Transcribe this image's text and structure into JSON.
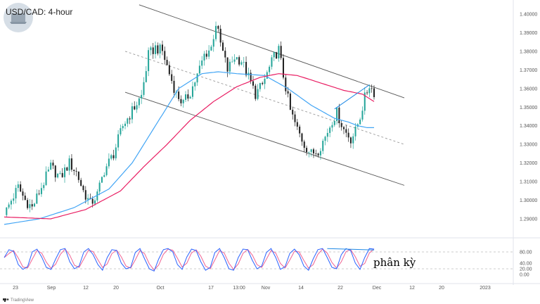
{
  "title": "USD/CAD: 4-hour",
  "brand": "TradingView",
  "colors": {
    "up": "#26a69a",
    "down": "#222222",
    "ma_fast": "#42a5f5",
    "ma_slow": "#e91e63",
    "channel": "#555555",
    "rsi_k": "#2962ff",
    "rsi_d": "#f06292",
    "divergence": "#1e88e5"
  },
  "chart_data": [
    {
      "type": "candlestick",
      "pair": "USD/CAD",
      "timeframe": "4-hour",
      "x_tick_labels": [
        "23",
        "Sep",
        "12",
        "20",
        "Oct",
        "17",
        "13:00",
        "Nov",
        "14",
        "22",
        "Dec",
        "12",
        "20",
        "2023"
      ],
      "y_tick_labels": [
        "1.29000",
        "1.30000",
        "1.31000",
        "1.32000",
        "1.33000",
        "1.34000",
        "1.35000",
        "1.36000",
        "1.37000",
        "1.38000",
        "1.39000",
        "1.40000"
      ],
      "ylim": [
        1.285,
        1.405
      ],
      "price_path": [
        [
          0,
          1.292
        ],
        [
          3,
          1.3
        ],
        [
          6,
          1.307
        ],
        [
          9,
          1.3
        ],
        [
          12,
          1.296
        ],
        [
          16,
          1.307
        ],
        [
          20,
          1.318
        ],
        [
          24,
          1.312
        ],
        [
          28,
          1.32
        ],
        [
          31,
          1.315
        ],
        [
          34,
          1.305
        ],
        [
          37,
          1.298
        ],
        [
          40,
          1.303
        ],
        [
          43,
          1.316
        ],
        [
          47,
          1.325
        ],
        [
          51,
          1.34
        ],
        [
          55,
          1.348
        ],
        [
          59,
          1.356
        ],
        [
          62,
          1.378
        ],
        [
          65,
          1.382
        ],
        [
          68,
          1.38
        ],
        [
          71,
          1.368
        ],
        [
          74,
          1.357
        ],
        [
          77,
          1.352
        ],
        [
          80,
          1.358
        ],
        [
          83,
          1.367
        ],
        [
          86,
          1.378
        ],
        [
          89,
          1.382
        ],
        [
          91,
          1.395
        ],
        [
          93,
          1.384
        ],
        [
          96,
          1.37
        ],
        [
          99,
          1.377
        ],
        [
          102,
          1.375
        ],
        [
          105,
          1.366
        ],
        [
          108,
          1.357
        ],
        [
          111,
          1.362
        ],
        [
          114,
          1.371
        ],
        [
          116,
          1.377
        ],
        [
          118,
          1.381
        ],
        [
          120,
          1.367
        ],
        [
          123,
          1.348
        ],
        [
          126,
          1.338
        ],
        [
          129,
          1.33
        ],
        [
          132,
          1.325
        ],
        [
          135,
          1.327
        ],
        [
          138,
          1.334
        ],
        [
          141,
          1.343
        ],
        [
          143,
          1.347
        ],
        [
          146,
          1.338
        ],
        [
          149,
          1.333
        ],
        [
          151,
          1.337
        ],
        [
          153,
          1.345
        ],
        [
          155,
          1.355
        ],
        [
          157,
          1.362
        ],
        [
          159,
          1.358
        ]
      ],
      "series": [
        {
          "type": "line",
          "values": [
            [
              0,
              1.287
            ],
            [
              15,
              1.29
            ],
            [
              30,
              1.296
            ],
            [
              45,
              1.306
            ],
            [
              55,
              1.32
            ],
            [
              65,
              1.34
            ],
            [
              75,
              1.36
            ],
            [
              85,
              1.368
            ],
            [
              92,
              1.369
            ],
            [
              100,
              1.368
            ],
            [
              112,
              1.367
            ],
            [
              122,
              1.36
            ],
            [
              132,
              1.351
            ],
            [
              142,
              1.344
            ],
            [
              148,
              1.342
            ],
            [
              152,
              1.34
            ],
            [
              156,
              1.339
            ]
          ]
        },
        {
          "type": "line",
          "values": [
            [
              0,
              1.291
            ],
            [
              20,
              1.29
            ],
            [
              35,
              1.295
            ],
            [
              50,
              1.305
            ],
            [
              60,
              1.318
            ],
            [
              70,
              1.33
            ],
            [
              80,
              1.343
            ],
            [
              90,
              1.353
            ],
            [
              100,
              1.361
            ],
            [
              110,
              1.366
            ],
            [
              118,
              1.368
            ],
            [
              126,
              1.367
            ],
            [
              136,
              1.363
            ],
            [
              146,
              1.359
            ],
            [
              154,
              1.357
            ],
            [
              159,
              1.353
            ]
          ]
        }
      ],
      "channel": {
        "upper": [
          [
            58,
            1.405
          ],
          [
            172,
            1.355
          ]
        ],
        "middle": [
          [
            52,
            1.38
          ],
          [
            172,
            1.33
          ]
        ],
        "lower": [
          [
            52,
            1.358
          ],
          [
            172,
            1.308
          ]
        ]
      },
      "annotation": {
        "type": "line",
        "from": [
          142,
          1.349
        ],
        "to": [
          157,
          1.362
        ]
      }
    },
    {
      "type": "line",
      "indicator": "Stochastic RSI",
      "y_tick_labels": [
        "0.00",
        "20.00",
        "40.00",
        "80.00"
      ],
      "ylim": [
        0,
        100
      ],
      "levels": [
        20,
        80
      ],
      "k_values": [
        60,
        88,
        82,
        35,
        18,
        28,
        80,
        90,
        62,
        25,
        18,
        55,
        88,
        92,
        45,
        20,
        30,
        80,
        92,
        70,
        35,
        15,
        60,
        88,
        85,
        40,
        20,
        25,
        78,
        92,
        55,
        20,
        12,
        55,
        88,
        92,
        80,
        35,
        18,
        62,
        90,
        85,
        45,
        15,
        25,
        78,
        92,
        60,
        20,
        15,
        60,
        90,
        88,
        50,
        20,
        30,
        78,
        92,
        60,
        18,
        28,
        75,
        90,
        70,
        30,
        15,
        55,
        88,
        92,
        60,
        25,
        20,
        70,
        92,
        85,
        40,
        18,
        60,
        92,
        90
      ],
      "divergence": {
        "from": [
          69,
          92
        ],
        "to": [
          79,
          87
        ]
      },
      "annotation_text": "phân kỳ"
    }
  ]
}
